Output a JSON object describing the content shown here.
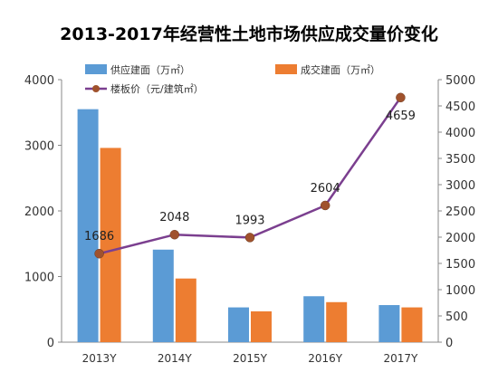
{
  "chart_data": {
    "type": "bar",
    "title": "2013-2017年经营性土地市场供应成交量价变化",
    "categories": [
      "2013Y",
      "2014Y",
      "2015Y",
      "2016Y",
      "2017Y"
    ],
    "series": [
      {
        "name": "供应建面（万㎡）",
        "kind": "bar",
        "axis": "left",
        "color": "#5b9bd5",
        "values": [
          3550,
          1410,
          530,
          700,
          565
        ]
      },
      {
        "name": "成交建面（万㎡）",
        "kind": "bar",
        "axis": "left",
        "color": "#ed7d31",
        "values": [
          2960,
          970,
          470,
          610,
          530
        ]
      },
      {
        "name": "楼板价（元/建筑㎡）",
        "kind": "line",
        "axis": "right",
        "color": "#7b3f8f",
        "marker_color": "#a0522d",
        "values": [
          1686,
          2048,
          1993,
          2604,
          4659
        ],
        "labels": [
          "1686",
          "2048",
          "1993",
          "2604",
          "4659"
        ]
      }
    ],
    "y_left": {
      "ylim": [
        0,
        4000
      ],
      "ticks": [
        "0",
        "1000",
        "2000",
        "3000",
        "4000"
      ]
    },
    "y_right": {
      "ylim": [
        0,
        5000
      ],
      "ticks": [
        "0",
        "500",
        "1000",
        "1500",
        "2000",
        "2500",
        "3000",
        "3500",
        "4000",
        "4500",
        "5000"
      ]
    },
    "grid": false,
    "legend_position": "top"
  }
}
